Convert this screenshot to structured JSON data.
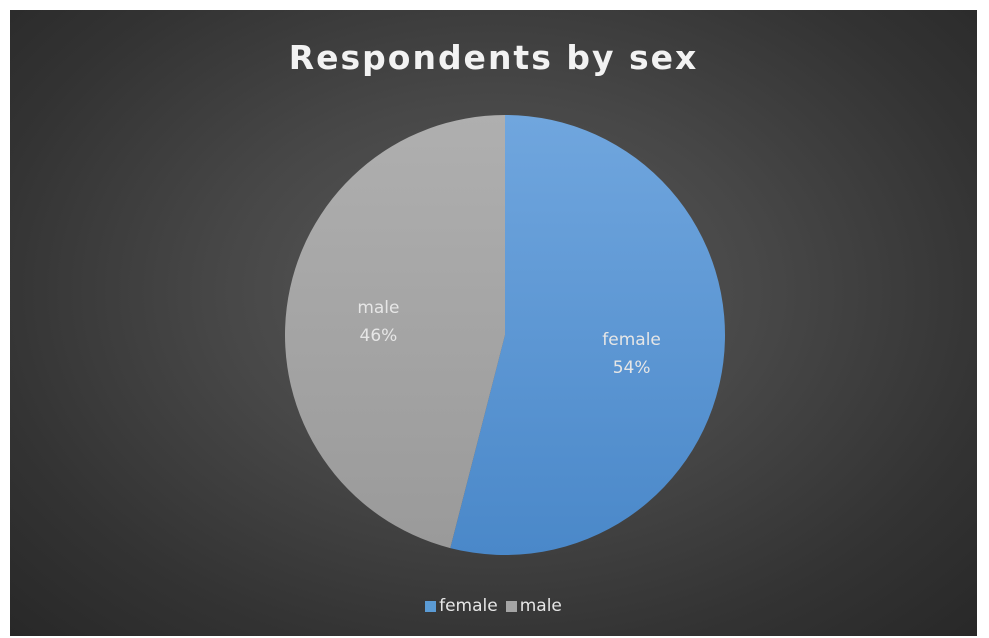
{
  "chart_data": {
    "type": "pie",
    "title": "Respondents by sex",
    "slices": [
      {
        "label": "female",
        "value": 54,
        "value_label": "54%",
        "color": "#5b9bd5"
      },
      {
        "label": "male",
        "value": 46,
        "value_label": "46%",
        "color": "#a5a5a5"
      }
    ],
    "legend": {
      "position": "bottom",
      "entries": [
        "female",
        "male"
      ]
    },
    "background_color": "#404040"
  }
}
